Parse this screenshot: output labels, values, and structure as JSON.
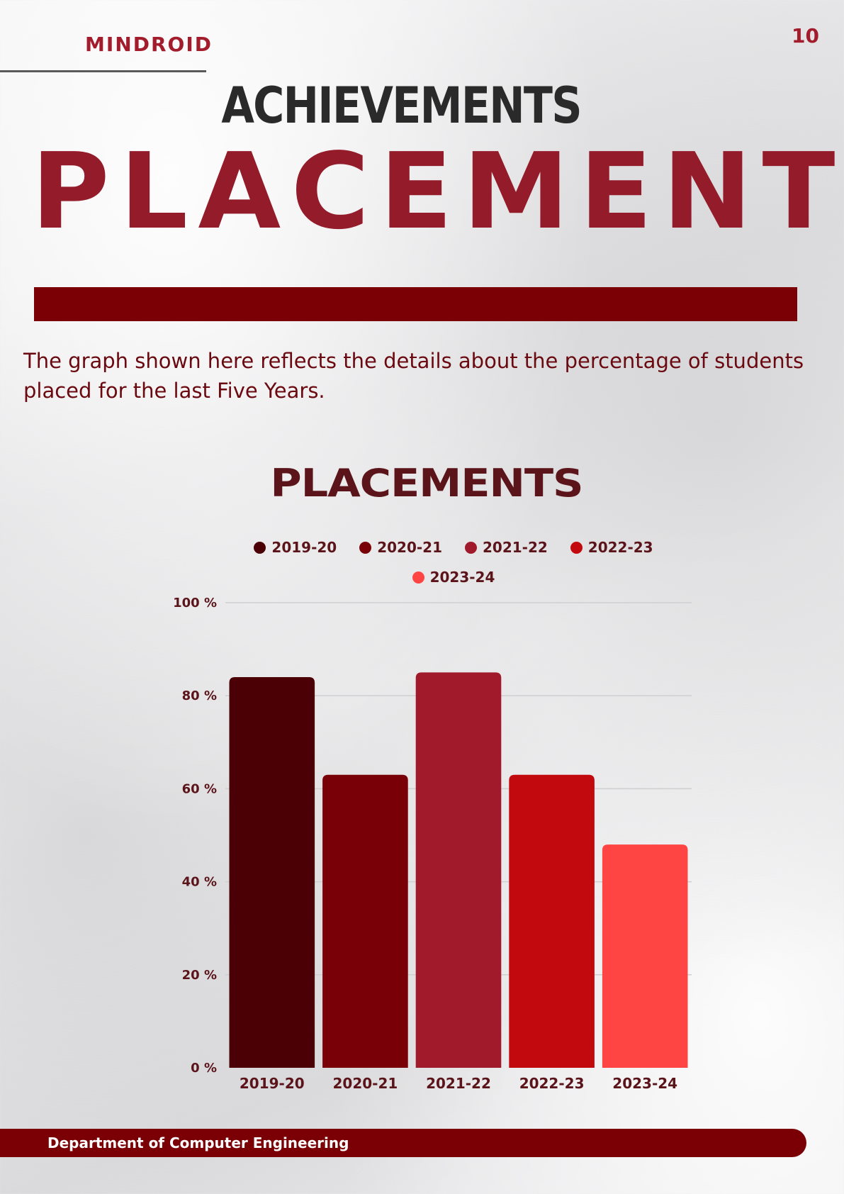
{
  "header": {
    "brand": "MINDROID",
    "page_number": "10"
  },
  "heading": "ACHIEVEMENTS",
  "big_title": "PLACEMENT",
  "intro_text": "The graph shown here reflects the details about the percentage of students placed for the last Five Years.",
  "footer": {
    "department": "Department of Computer Engineering"
  },
  "colors": {
    "accent": "#7b0005",
    "title_red": "#941b2a",
    "series": [
      "#4a0004",
      "#7a0007",
      "#a01a2b",
      "#c20a0e",
      "#ff4444"
    ]
  },
  "chart_data": {
    "type": "bar",
    "title": "PLACEMENTS",
    "categories": [
      "2019-20",
      "2020-21",
      "2021-22",
      "2022-23",
      "2023-24"
    ],
    "values": [
      84,
      63,
      85,
      63,
      48
    ],
    "legend": [
      "2019-20",
      "2020-21",
      "2021-22",
      "2022-23",
      "2023-24"
    ],
    "legend_position": "top",
    "ylim": [
      0,
      100
    ],
    "yticks": [
      0,
      20,
      40,
      60,
      80,
      100
    ],
    "ytick_labels": [
      "0 %",
      "20 %",
      "40 %",
      "60 %",
      "80 %",
      "100 %"
    ],
    "grid": true,
    "xlabel": "",
    "ylabel": ""
  }
}
